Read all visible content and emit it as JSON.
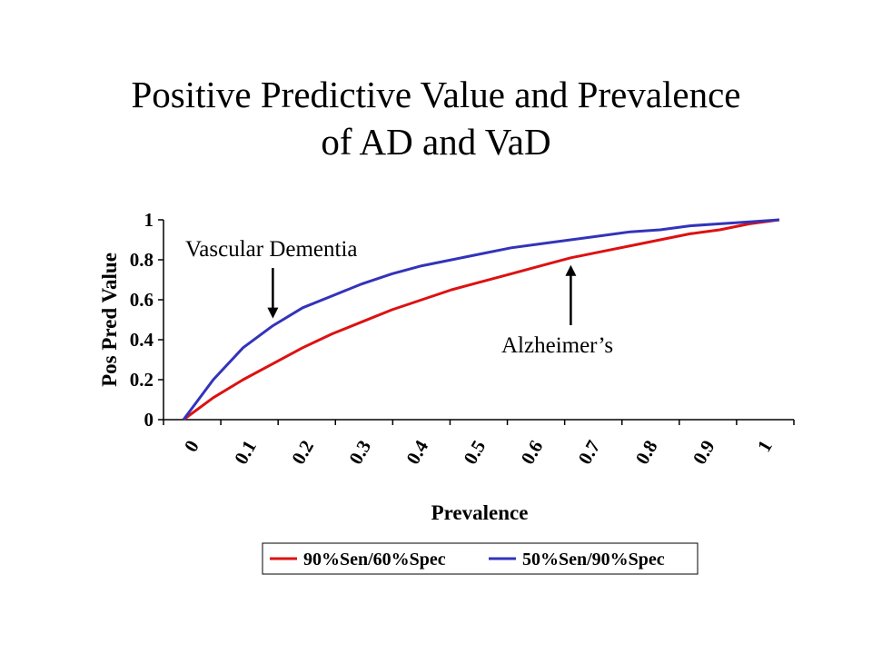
{
  "title_lines": [
    "Positive Predictive Value and Prevalence",
    "of AD and VaD"
  ],
  "chart_data": {
    "type": "line",
    "xlabel": "Prevalence",
    "ylabel": "Pos Pred Value",
    "xlim": [
      0,
      1
    ],
    "ylim": [
      0,
      1
    ],
    "x_ticks": [
      "0",
      "0.1",
      "0.2",
      "0.3",
      "0.4",
      "0.5",
      "0.6",
      "0.7",
      "0.8",
      "0.9",
      "1"
    ],
    "y_ticks": [
      "0",
      "0.2",
      "0.4",
      "0.6",
      "0.8",
      "1"
    ],
    "grid": false,
    "legend_position": "bottom",
    "x": [
      0,
      0.05,
      0.1,
      0.15,
      0.2,
      0.25,
      0.3,
      0.35,
      0.4,
      0.45,
      0.5,
      0.55,
      0.6,
      0.65,
      0.7,
      0.75,
      0.8,
      0.85,
      0.9,
      0.95,
      1
    ],
    "series": [
      {
        "name": "90%Sen/60%Spec",
        "color": "#dd1111",
        "values": [
          0,
          0.11,
          0.2,
          0.28,
          0.36,
          0.43,
          0.49,
          0.55,
          0.6,
          0.65,
          0.69,
          0.73,
          0.77,
          0.81,
          0.84,
          0.87,
          0.9,
          0.93,
          0.95,
          0.98,
          1.0
        ]
      },
      {
        "name": "50%Sen/90%Spec",
        "color": "#3333bb",
        "values": [
          0,
          0.2,
          0.36,
          0.47,
          0.56,
          0.62,
          0.68,
          0.73,
          0.77,
          0.8,
          0.83,
          0.86,
          0.88,
          0.9,
          0.92,
          0.94,
          0.95,
          0.97,
          0.98,
          0.99,
          1.0
        ]
      }
    ],
    "annotations": [
      {
        "text": "Vascular Dementia",
        "series": 1,
        "x": 0.15
      },
      {
        "text": "Alzheimer’s",
        "series": 0,
        "x": 0.65
      }
    ]
  }
}
